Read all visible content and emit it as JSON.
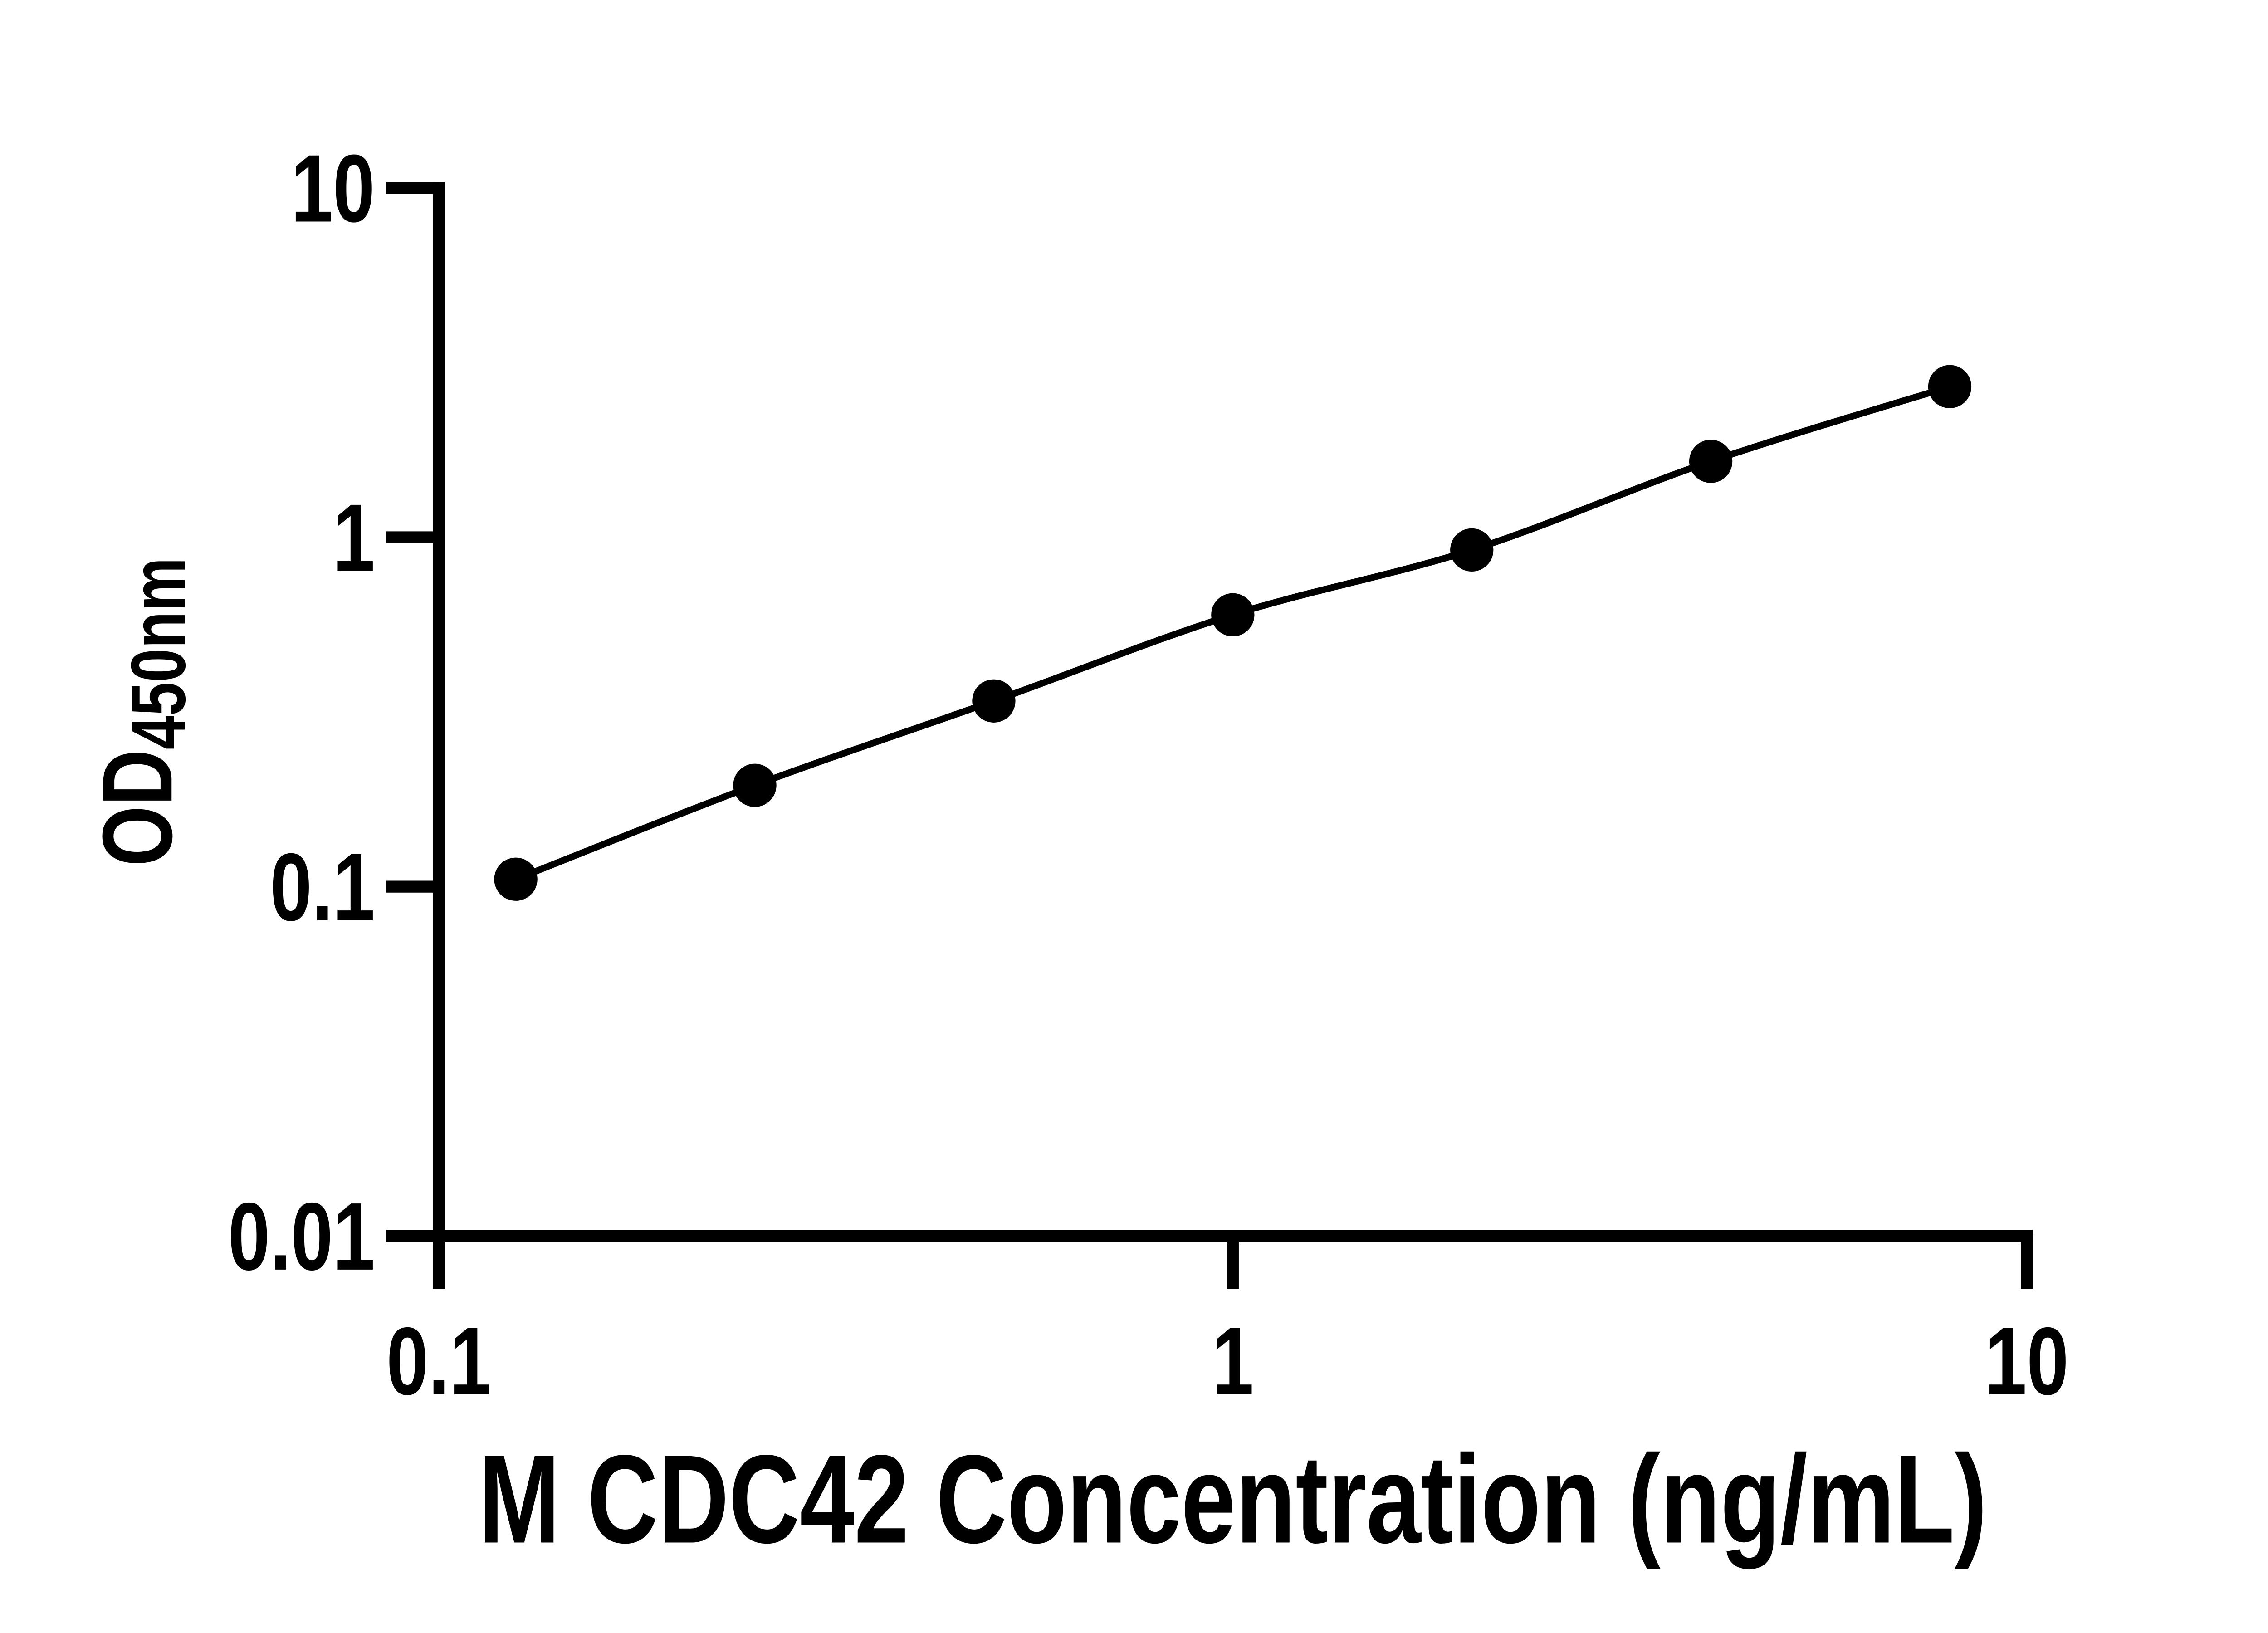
{
  "figure": {
    "background_color": "#ffffff",
    "ink_color": "#000000"
  },
  "chart_data": {
    "type": "scatter",
    "subtype": "log-log standard curve with fitted connecting line",
    "title": "",
    "xlabel": "M CDC42 Concentration (ng/mL)",
    "ylabel_main": "OD",
    "ylabel_subscript": "450nm",
    "x": [
      0.125,
      0.25,
      0.5,
      1,
      2,
      4,
      8
    ],
    "series": [
      {
        "name": "",
        "values": [
          0.105,
          0.195,
          0.34,
          0.6,
          0.92,
          1.65,
          2.7
        ]
      }
    ],
    "x_scale": "log10",
    "y_scale": "log10",
    "xlim": [
      0.1,
      10
    ],
    "ylim": [
      0.01,
      10
    ],
    "x_ticks": [
      {
        "value": 0.1,
        "label": "0.1"
      },
      {
        "value": 1,
        "label": "1"
      },
      {
        "value": 10,
        "label": "10"
      }
    ],
    "y_ticks": [
      {
        "value": 0.01,
        "label": "0.01"
      },
      {
        "value": 0.1,
        "label": "0.1"
      },
      {
        "value": 1,
        "label": "1"
      },
      {
        "value": 10,
        "label": "10"
      }
    ],
    "grid": false,
    "legend": false,
    "minor_ticks": false,
    "marker": "filled-circle",
    "marker_color": "#000000",
    "line_color": "#000000"
  }
}
